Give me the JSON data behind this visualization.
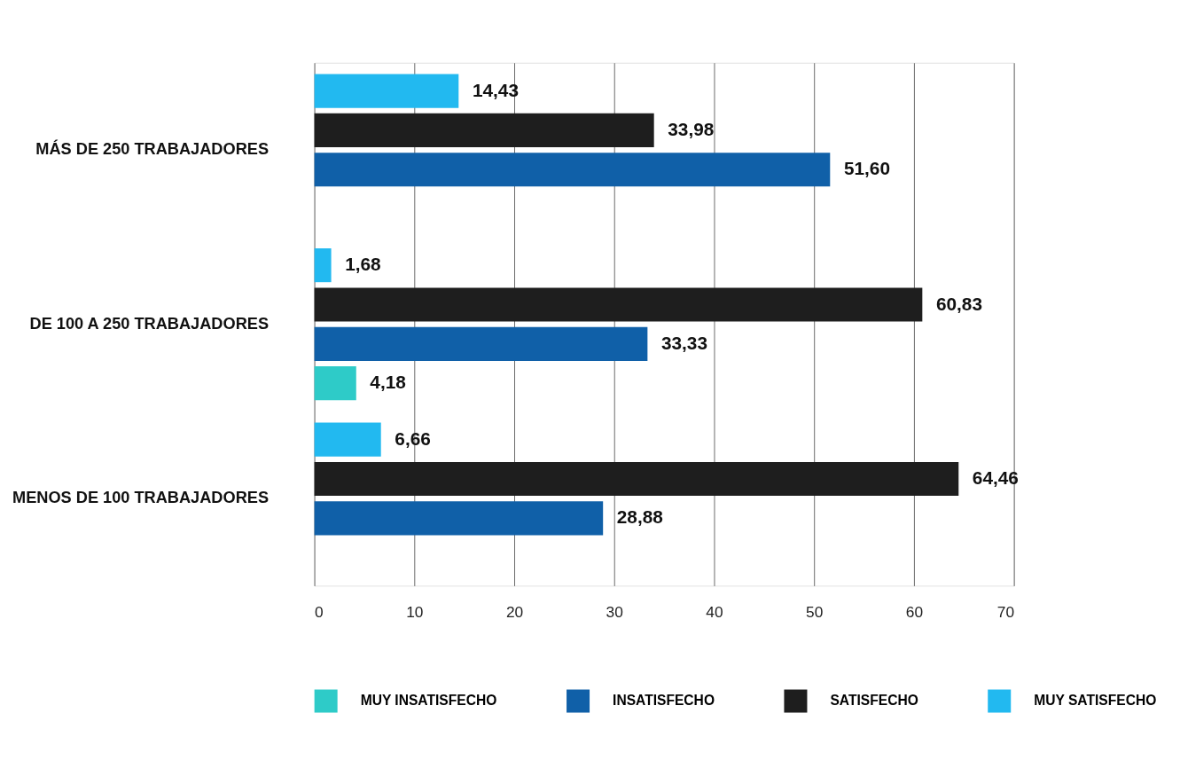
{
  "chart_data": {
    "type": "bar",
    "orientation": "horizontal",
    "categories": [
      "MÁS DE 250 TRABAJADORES",
      "DE 100 A 250 TRABAJADORES",
      "MENOS DE 100 TRABAJADORES"
    ],
    "series": [
      {
        "name": "MUY INSATISFECHO",
        "color": "#2ecbc8",
        "values": [
          null,
          4.18,
          null
        ],
        "value_labels": [
          null,
          "4,18",
          null
        ]
      },
      {
        "name": "INSATISFECHO",
        "color": "#1060a8",
        "values": [
          51.6,
          33.33,
          28.88
        ],
        "value_labels": [
          "51,60",
          "33,33",
          "28,88"
        ]
      },
      {
        "name": "SATISFECHO",
        "color": "#1e1e1e",
        "values": [
          33.98,
          60.83,
          64.46
        ],
        "value_labels": [
          "33,98",
          "60,83",
          "64,46"
        ]
      },
      {
        "name": "MUY SATISFECHO",
        "color": "#22b9f0",
        "values": [
          14.43,
          1.68,
          6.66
        ],
        "value_labels": [
          "14,43",
          "1,68",
          "6,66"
        ]
      }
    ],
    "xlim": [
      0,
      70
    ],
    "xticks": [
      0,
      10,
      20,
      30,
      40,
      50,
      60,
      70
    ],
    "grid": "x",
    "legend": "bottom"
  }
}
